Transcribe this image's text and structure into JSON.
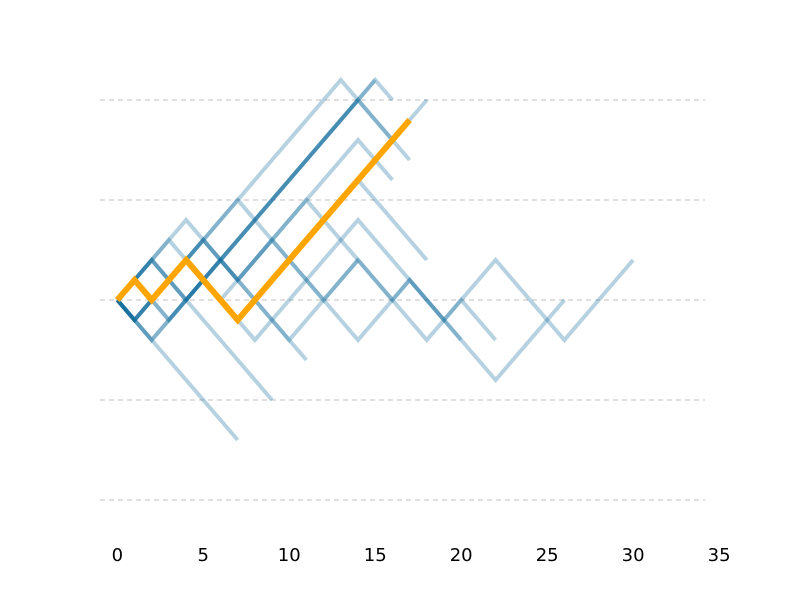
{
  "chart_data": {
    "type": "line",
    "title": "",
    "xlabel": "",
    "ylabel": "",
    "xlim": [
      -1,
      35
    ],
    "ylim": [
      -10,
      10
    ],
    "x_ticks": [
      0,
      5,
      10,
      15,
      20,
      25,
      30,
      35
    ],
    "x_tick_labels": [
      "0",
      "5",
      "10",
      "15",
      "20",
      "25",
      "30",
      "35"
    ],
    "y_gridlines": [
      -10,
      -5,
      0,
      5,
      10
    ],
    "y_axis_visible": false,
    "grid": "horizontal dashed",
    "legend": "none",
    "colors": {
      "walk": "#0e6a9a",
      "highlight": "#ffa500",
      "grid": "#c0c0c0"
    },
    "series": [
      {
        "steps": [
          -1,
          1,
          1,
          -1,
          1,
          1,
          -1,
          -1,
          -1,
          -1,
          1,
          1,
          1,
          1,
          -1,
          -1,
          1,
          -1,
          -1,
          1,
          1,
          1,
          -1,
          -1,
          -1,
          -1,
          1,
          1,
          1,
          1
        ]
      },
      {
        "steps": [
          1,
          1,
          1,
          -1,
          -1,
          -1,
          -1,
          -1,
          1,
          1,
          1,
          1,
          1,
          1,
          -1,
          -1,
          -1,
          -1,
          -1,
          -1
        ]
      },
      {
        "steps": [
          -1,
          -1,
          1,
          1,
          1,
          1,
          1,
          1,
          1,
          1,
          1,
          1,
          1,
          1,
          1
        ]
      },
      {
        "steps": [
          -1,
          1,
          1,
          1,
          1,
          1,
          1,
          -1,
          -1,
          -1,
          -1,
          -1,
          -1,
          -1,
          1,
          1,
          1,
          -1,
          -1,
          -1,
          -1,
          -1,
          1,
          1,
          1,
          1
        ]
      },
      {
        "steps": [
          -1,
          1,
          1,
          -1,
          1,
          1,
          1,
          1,
          1,
          1,
          1,
          1,
          1,
          1,
          -1,
          -1,
          1,
          1
        ]
      },
      {
        "steps": [
          1,
          -1,
          1,
          1,
          1,
          -1,
          -1,
          -1,
          -1,
          -1,
          -1
        ]
      },
      {
        "steps": [
          1,
          1,
          -1,
          -1,
          -1,
          -1,
          -1,
          -1,
          -1
        ]
      },
      {
        "steps": [
          1,
          1,
          -1,
          1,
          -1,
          -1,
          1,
          1,
          1,
          -1,
          -1,
          -1,
          1,
          1
        ]
      },
      {
        "steps": [
          -1,
          1,
          -1,
          1,
          1,
          1,
          1,
          1,
          1,
          1,
          1,
          1,
          1,
          1,
          1,
          -1
        ]
      },
      {
        "steps": [
          1,
          -1,
          1,
          1,
          1,
          -1,
          -1,
          1,
          1,
          1,
          1,
          1,
          1,
          1,
          -1,
          -1
        ]
      },
      {
        "steps": [
          1,
          1,
          1,
          1,
          -1,
          1,
          1,
          1,
          1,
          1,
          1,
          1,
          1,
          -1,
          -1,
          -1,
          -1
        ]
      },
      {
        "steps": [
          -1,
          -1,
          1,
          1,
          1,
          1,
          1,
          1,
          1,
          1,
          1,
          1,
          1,
          1
        ]
      },
      {
        "steps": [
          -1,
          -1,
          -1,
          -1,
          -1,
          -1,
          -1
        ]
      },
      {
        "steps": [
          1,
          1,
          -1,
          1,
          1,
          -1,
          -1,
          1,
          1,
          1,
          1,
          -1,
          -1,
          -1,
          -1,
          -1,
          -1,
          -1,
          1,
          1,
          -1,
          -1
        ]
      },
      {
        "steps": [
          -1,
          1,
          -1,
          1,
          1,
          -1,
          -1,
          1,
          1,
          1,
          1,
          1,
          1,
          1,
          -1,
          -1,
          -1,
          -1
        ]
      },
      {
        "steps": [
          1,
          -1,
          1,
          1,
          -1,
          -1,
          -1,
          1,
          1,
          1,
          1,
          1,
          1,
          1,
          1,
          1,
          1
        ],
        "highlight": true
      }
    ]
  }
}
